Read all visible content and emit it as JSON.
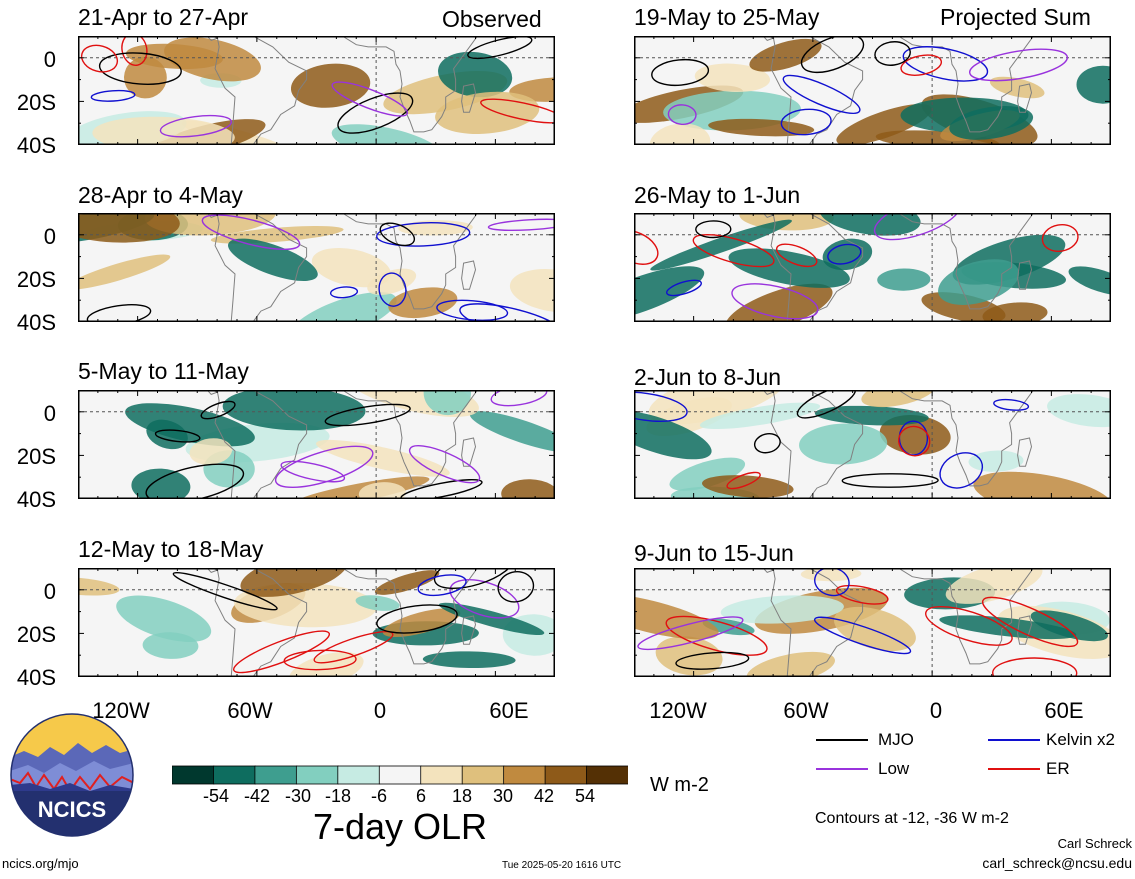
{
  "left_column_label": "Observed",
  "right_column_label": "Projected Sum",
  "panels": [
    {
      "title": "21-Apr to 27-Apr"
    },
    {
      "title": "28-Apr to 4-May"
    },
    {
      "title": "5-May to 11-May"
    },
    {
      "title": "12-May to 18-May"
    },
    {
      "title": "19-May to 25-May"
    },
    {
      "title": "26-May to 1-Jun"
    },
    {
      "title": "2-Jun to 8-Jun"
    },
    {
      "title": "9-Jun to 15-Jun"
    }
  ],
  "y_axis_labels": [
    "0",
    "20S",
    "40S"
  ],
  "x_axis_labels": [
    "120W",
    "60W",
    "0",
    "60E"
  ],
  "colorbar": {
    "title": "7-day OLR",
    "units": "W m-2",
    "tick_labels": [
      "-54",
      "-42",
      "-30",
      "-18",
      "-6",
      "6",
      "18",
      "30",
      "42",
      "54"
    ],
    "colors": [
      "#00382e",
      "#0e6d5f",
      "#3e9e8f",
      "#82cfbf",
      "#c6ebe3",
      "#f5f5f5",
      "#f3e3bd",
      "#dfc07d",
      "#c08a3f",
      "#8e5a19",
      "#543005"
    ]
  },
  "legend": {
    "items": [
      {
        "label": "MJO",
        "color": "#000000"
      },
      {
        "label": "Kelvin x2",
        "color": "#1010d0"
      },
      {
        "label": "Low",
        "color": "#9933dd"
      },
      {
        "label": "ER",
        "color": "#e01010"
      }
    ],
    "contours_note": "Contours at -12, -36 W m-2"
  },
  "logo_text": "NCICS",
  "footer": {
    "left": "ncics.org/mjo",
    "center": "Tue 2025-05-20 1616 UTC",
    "author": "Carl Schreck",
    "email": "carl_schreck@ncsu.edu"
  }
}
